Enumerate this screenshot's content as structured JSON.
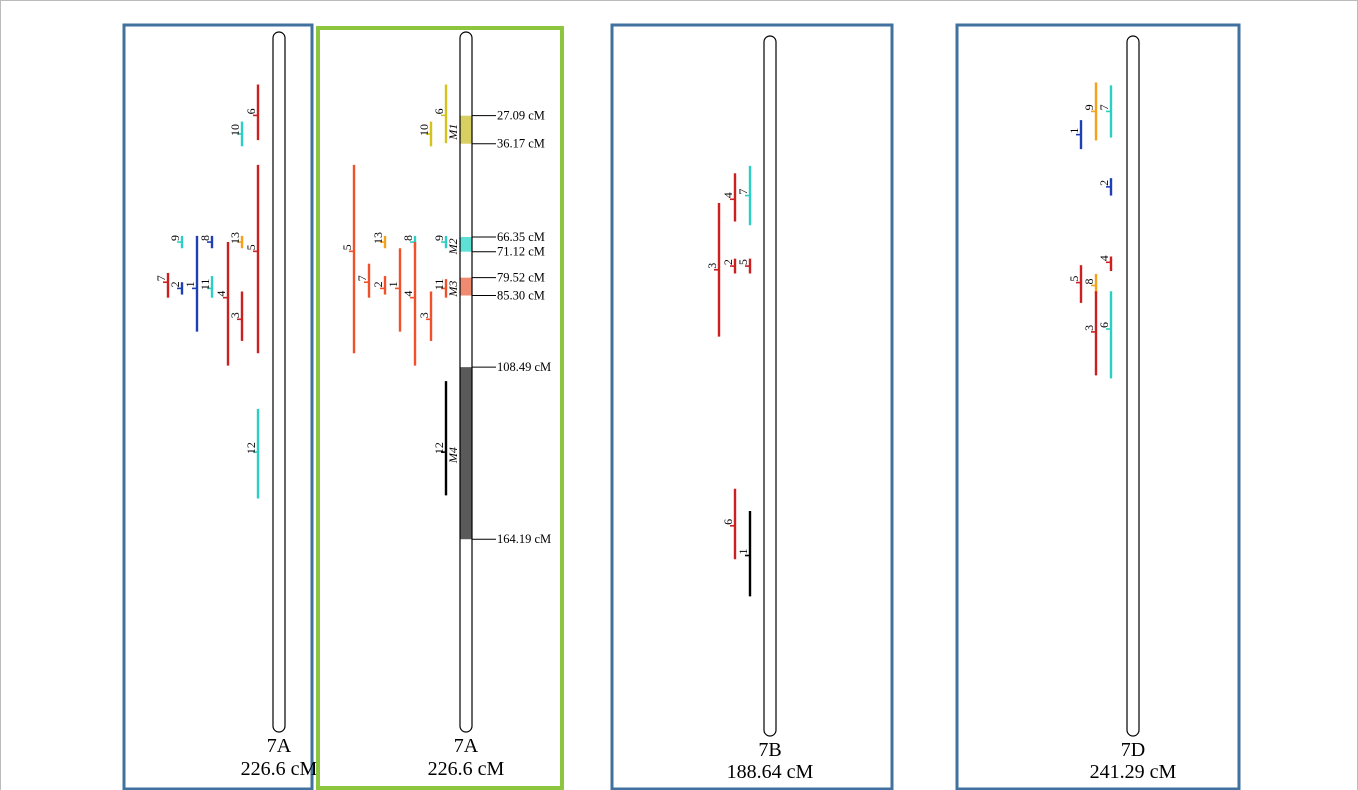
{
  "colors": {
    "panel_border": "#41729f",
    "highlight_border": "#8cc63f",
    "red": "#cc1f1f",
    "orange_red": "#f0502a",
    "cyan": "#2ccfc4",
    "blue": "#1f3fb5",
    "orange": "#f5a21b",
    "yellow": "#d4c21e",
    "black": "#000000",
    "m1_fill": "#d8cf62",
    "m2_fill": "#5fe0d6",
    "m3_fill": "#f08a70",
    "m4_fill": "#5a5a5a"
  },
  "panels": [
    {
      "id": "7A-original",
      "chromosome": "7A",
      "length_label": "226.6 cM",
      "length_cM": 226.6,
      "qtls": [
        {
          "label": "6",
          "color": "red",
          "start": 17,
          "end": 35,
          "tick": 27
        },
        {
          "label": "10",
          "color": "cyan",
          "start": 29,
          "end": 37,
          "tick": 33
        },
        {
          "label": "5",
          "color": "red",
          "start": 43,
          "end": 104,
          "tick": 71
        },
        {
          "label": "13",
          "color": "orange",
          "start": 66,
          "end": 70,
          "tick": 68
        },
        {
          "label": "9",
          "color": "cyan",
          "start": 66,
          "end": 70,
          "tick": 68
        },
        {
          "label": "8",
          "color": "blue",
          "start": 66,
          "end": 70,
          "tick": 68
        },
        {
          "label": "7",
          "color": "red",
          "start": 78,
          "end": 86,
          "tick": 81
        },
        {
          "label": "2",
          "color": "blue",
          "start": 81,
          "end": 85,
          "tick": 83
        },
        {
          "label": "1",
          "color": "blue",
          "start": 66,
          "end": 97,
          "tick": 83
        },
        {
          "label": "11",
          "color": "cyan",
          "start": 79,
          "end": 86,
          "tick": 83
        },
        {
          "label": "4",
          "color": "red",
          "start": 68,
          "end": 108,
          "tick": 86
        },
        {
          "label": "3",
          "color": "red",
          "start": 84,
          "end": 100,
          "tick": 93
        },
        {
          "label": "12",
          "color": "cyan",
          "start": 122,
          "end": 151,
          "tick": 136
        }
      ]
    },
    {
      "id": "7A-meta",
      "chromosome": "7A",
      "length_label": "226.6 cM",
      "length_cM": 226.6,
      "meta_qtls": [
        {
          "label": "M1",
          "start": 27.09,
          "end": 36.17,
          "start_label": "27.09 cM",
          "end_label": "36.17 cM",
          "color": "m1_fill"
        },
        {
          "label": "M2",
          "start": 66.35,
          "end": 71.12,
          "start_label": "66.35 cM",
          "end_label": "71.12 cM",
          "color": "m2_fill"
        },
        {
          "label": "M3",
          "start": 79.52,
          "end": 85.3,
          "start_label": "79.52 cM",
          "end_label": "85.30 cM",
          "color": "m3_fill"
        },
        {
          "label": "M4",
          "start": 108.49,
          "end": 164.19,
          "start_label": "108.49 cM",
          "end_label": "164.19 cM",
          "color": "m4_fill"
        }
      ],
      "qtls": [
        {
          "label": "6",
          "color": "yellow",
          "start": 17,
          "end": 36,
          "tick": 27
        },
        {
          "label": "10",
          "color": "yellow",
          "start": 29,
          "end": 37,
          "tick": 33
        },
        {
          "label": "5",
          "color": "orange_red",
          "start": 43,
          "end": 104,
          "tick": 71
        },
        {
          "label": "13",
          "color": "orange",
          "start": 66,
          "end": 70,
          "tick": 68
        },
        {
          "label": "8",
          "color": "cyan",
          "start": 66,
          "end": 70,
          "tick": 68
        },
        {
          "label": "9",
          "color": "cyan",
          "start": 66,
          "end": 70,
          "tick": 68
        },
        {
          "label": "7",
          "color": "orange_red",
          "start": 75,
          "end": 86,
          "tick": 81
        },
        {
          "label": "2",
          "color": "orange_red",
          "start": 79,
          "end": 85,
          "tick": 83
        },
        {
          "label": "1",
          "color": "orange_red",
          "start": 70,
          "end": 97,
          "tick": 83
        },
        {
          "label": "4",
          "color": "orange_red",
          "start": 68,
          "end": 108,
          "tick": 86
        },
        {
          "label": "11",
          "color": "orange_red",
          "start": 80,
          "end": 86,
          "tick": 83
        },
        {
          "label": "3",
          "color": "orange_red",
          "start": 84,
          "end": 100,
          "tick": 93
        },
        {
          "label": "12",
          "color": "black",
          "start": 113,
          "end": 150,
          "tick": 136
        }
      ]
    },
    {
      "id": "7B",
      "chromosome": "7B",
      "length_label": "188.64 cM",
      "length_cM": 188.64,
      "qtls": [
        {
          "label": "4",
          "color": "red",
          "start": 37,
          "end": 50,
          "tick": 44
        },
        {
          "label": "7",
          "color": "cyan",
          "start": 35,
          "end": 51,
          "tick": 43
        },
        {
          "label": "3",
          "color": "red",
          "start": 45,
          "end": 81,
          "tick": 63
        },
        {
          "label": "2",
          "color": "red",
          "start": 60,
          "end": 64,
          "tick": 62
        },
        {
          "label": "5",
          "color": "red",
          "start": 60,
          "end": 64,
          "tick": 62
        },
        {
          "label": "6",
          "color": "red",
          "start": 122,
          "end": 141,
          "tick": 132
        },
        {
          "label": "1",
          "color": "black",
          "start": 128,
          "end": 151,
          "tick": 140
        }
      ]
    },
    {
      "id": "7D",
      "chromosome": "7D",
      "length_label": "241.29 cM",
      "length_cM": 241.29,
      "qtls": [
        {
          "label": "9",
          "color": "orange",
          "start": 16,
          "end": 36,
          "tick": 26
        },
        {
          "label": "7",
          "color": "cyan",
          "start": 17,
          "end": 35,
          "tick": 26
        },
        {
          "label": "1",
          "color": "blue",
          "start": 29,
          "end": 39,
          "tick": 34
        },
        {
          "label": "2",
          "color": "blue",
          "start": 49,
          "end": 55,
          "tick": 52
        },
        {
          "label": "4",
          "color": "red",
          "start": 76,
          "end": 81,
          "tick": 78
        },
        {
          "label": "5",
          "color": "red",
          "start": 79,
          "end": 92,
          "tick": 85
        },
        {
          "label": "8",
          "color": "orange",
          "start": 82,
          "end": 89,
          "tick": 86
        },
        {
          "label": "3",
          "color": "red",
          "start": 88,
          "end": 117,
          "tick": 102
        },
        {
          "label": "6",
          "color": "cyan",
          "start": 88,
          "end": 118,
          "tick": 101
        }
      ]
    }
  ]
}
